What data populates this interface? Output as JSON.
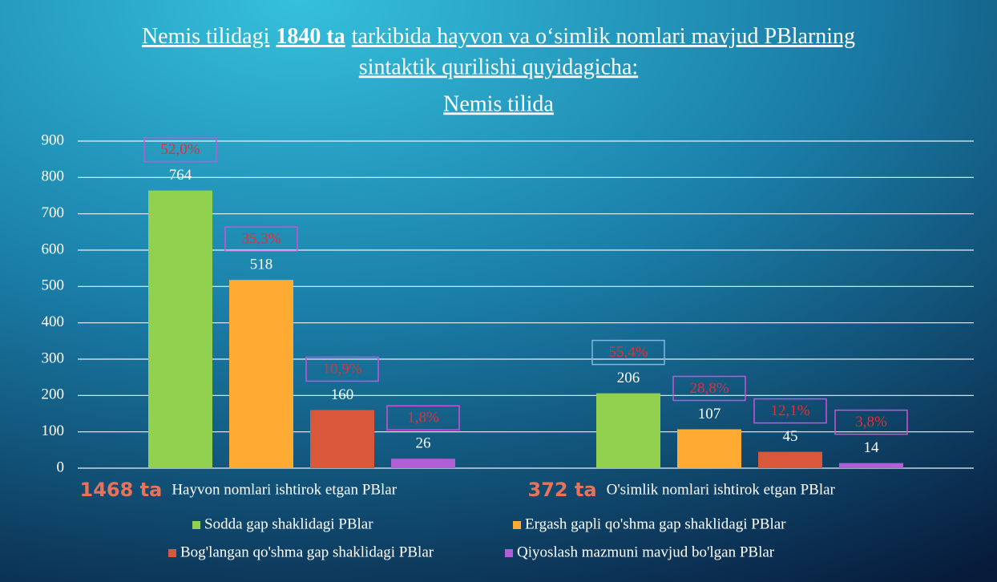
{
  "chart_data": {
    "type": "bar",
    "title": [
      "Nemis tilidagi",
      "1840 ta",
      "tarkibida hayvon va o‘simlik nomlari mavjud PBlarning",
      "sintaktik qurilishi quyidagicha:"
    ],
    "subtitle": "Nemis tilida",
    "categories": [
      "Hayvon nomlari ishtirok etgan PBlar",
      "O'simlik nomlari ishtirok etgan PBlar"
    ],
    "category_totals": [
      {
        "value": 1468,
        "label": "1468 ta"
      },
      {
        "value": 372,
        "label": "372 ta"
      }
    ],
    "series": [
      {
        "name": "Sodda gap shaklidagi PBlar",
        "color": "#92d050",
        "values": [
          764,
          206
        ],
        "percents": [
          52.0,
          55.4
        ],
        "percent_labels": [
          "52,0%",
          "55,4%"
        ]
      },
      {
        "name": "Ergash gapli qo'shma gap shaklidagi PBlar",
        "color": "#ffaa33",
        "values": [
          518,
          107
        ],
        "percents": [
          35.3,
          28.8
        ],
        "percent_labels": [
          "35,3%",
          "28,8%"
        ]
      },
      {
        "name": "Bog'langan qo'shma gap shaklidagi PBlar",
        "color": "#d9573a",
        "values": [
          160,
          45
        ],
        "percents": [
          10.9,
          12.1
        ],
        "percent_labels": [
          "10,9%",
          "12,1%"
        ]
      },
      {
        "name": "Qiyoslash mazmuni mavjud bo'lgan PBlar",
        "color": "#b05fd6",
        "values": [
          26,
          14
        ],
        "percents": [
          1.8,
          3.8
        ],
        "percent_labels": [
          "1,8%",
          "3,8%"
        ]
      }
    ],
    "ylim": [
      0,
      900
    ],
    "yticks": [
      0,
      100,
      200,
      300,
      400,
      500,
      600,
      700,
      800,
      900
    ],
    "grid": true
  }
}
